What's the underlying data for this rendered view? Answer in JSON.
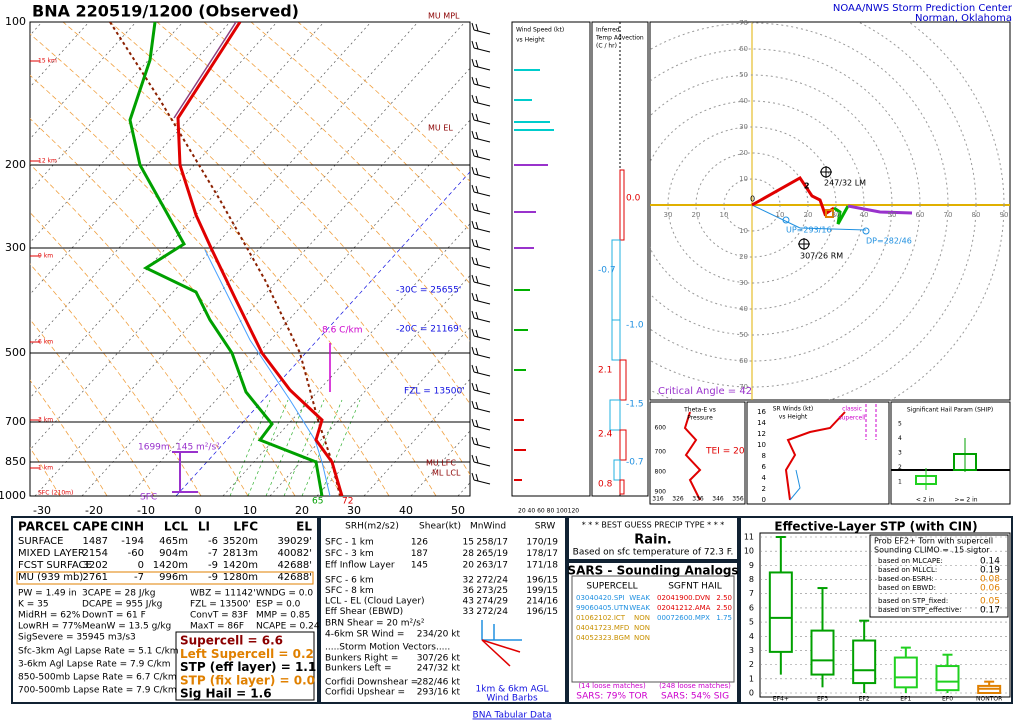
{
  "header": {
    "title": "BNA   220519/1200  (Observed)",
    "org": "NOAA/NWS Storm Prediction Center",
    "location": "Norman, Oklahoma"
  },
  "skewt": {
    "pressure_labels": [
      "100",
      "200",
      "300",
      "500",
      "700",
      "850",
      "1000"
    ],
    "temp_labels": [
      "-30",
      "-20",
      "-10",
      "0",
      "10",
      "20",
      "30",
      "40",
      "50"
    ],
    "height_labels": [
      "15 km",
      "12 km",
      "9 km",
      "6 km",
      "3 km",
      "1 km",
      "SFC (210m)"
    ],
    "annotations": {
      "mu_mpl": "MU MPL",
      "mu_el": "MU EL",
      "m30": "-30C = 25655'",
      "m20": "-20C = 21169'",
      "fzl": "FZL = 13500'",
      "lapse": "8.6 C/km",
      "eff_top": "1699m",
      "esrh": "145 m²/s²",
      "sfc": "SFC",
      "mu_lfc": "MU LFC",
      "ml_lcl": "ML LCL",
      "td": "65",
      "t": "72"
    }
  },
  "wind_panel": {
    "title": [
      "Wind Speed (kt)",
      "vs Height"
    ],
    "axis": "20 40 60 80 100120"
  },
  "advection": {
    "title": [
      "Inferred",
      "Temp Advection",
      "(C / hr)"
    ],
    "values": [
      "0.0",
      "-0.7",
      "-1.0",
      "2.1",
      "-1.5",
      "2.4",
      "-0.7",
      "0.8"
    ]
  },
  "hodograph": {
    "xticks": [
      10,
      20,
      30,
      40,
      50,
      60,
      70,
      80,
      90
    ],
    "yticks": [
      10,
      20,
      30,
      40,
      50,
      60,
      70
    ],
    "labels": {
      "lm": "247/32 LM",
      "rm": "307/26 RM",
      "up": "UP=293/16",
      "dp": "DP=282/46",
      "crit": "Critical Angle = 42",
      "p0": "0",
      "p2": "2"
    }
  },
  "theta_e": {
    "title": [
      "Theta-E vs",
      "Pressure"
    ],
    "tei": "TEI = 20",
    "yticks": [
      "600",
      "700",
      "800",
      "900"
    ],
    "xticks": [
      "316",
      "326",
      "336",
      "346",
      "356"
    ]
  },
  "sr_winds": {
    "title": [
      "SR Winds (kt)",
      "vs Height"
    ],
    "note": [
      "classic",
      "supercell"
    ],
    "yticks": [
      "16",
      "14",
      "12",
      "10",
      "8",
      "6",
      "4",
      "2",
      "0"
    ]
  },
  "ship": {
    "title": "Significant Hail Param (SHIP)",
    "yticks": [
      "5",
      "4",
      "3",
      "2",
      "1"
    ],
    "small": "< 2 in",
    "large": ">= 2 in"
  },
  "parcel": {
    "header": [
      "PARCEL",
      "CAPE",
      "CINH",
      "LCL",
      "LI",
      "LFC",
      "EL"
    ],
    "rows": [
      [
        "SURFACE",
        "1487",
        "-194",
        "465m",
        "-6",
        "3520m",
        "39029'"
      ],
      [
        "MIXED LAYER",
        "2154",
        "-60",
        "904m",
        "-7",
        "2813m",
        "40082'"
      ],
      [
        "FCST SURFACE",
        "3202",
        "0",
        "1420m",
        "-9",
        "1420m",
        "42688'"
      ],
      [
        "MU  (939 mb)",
        "2761",
        "-7",
        "996m",
        "-9",
        "1280m",
        "42688'"
      ]
    ],
    "indices": [
      [
        "PW = 1.49 in",
        "3CAPE = 28 J/kg",
        "WBZ = 11142'",
        "WNDG = 0.0"
      ],
      [
        "K = 35",
        "DCAPE = 955 J/kg",
        "FZL = 13500'",
        "ESP = 0.0"
      ],
      [
        "MidRH = 62%",
        "DownT = 61 F",
        "ConvT = 83F",
        "MMP = 0.85"
      ],
      [
        "LowRH = 77%",
        "MeanW = 13.5 g/kg",
        "MaxT = 86F",
        "NCAPE = 0.24"
      ]
    ],
    "sigsevere": "SigSevere = 35945 m3/s3",
    "lapse": [
      "Sfc-3km Agl Lapse Rate = 5.1 C/km",
      "3-6km Agl Lapse Rate = 7.9 C/km",
      "850-500mb Lapse Rate = 6.7 C/km",
      "700-500mb Lapse Rate = 7.9 C/km"
    ],
    "composite": [
      "Supercell = 6.6",
      "Left Supercell = 0.2",
      "STP (eff layer) = 1.1",
      "STP (fix layer) = 0.0",
      "Sig Hail = 1.6"
    ]
  },
  "kinematics": {
    "header": [
      "SRH(m2/s2)",
      "Shear(kt)",
      "MnWind",
      "SRW"
    ],
    "rows": [
      [
        "SFC - 1 km",
        "126",
        "15",
        "258/17",
        "170/19"
      ],
      [
        "SFC - 3 km",
        "187",
        "28",
        "265/19",
        "178/17"
      ],
      [
        "Eff Inflow Layer",
        "145",
        "20",
        "263/17",
        "171/18"
      ],
      [
        "SFC - 6 km",
        "32",
        "272/24",
        "196/15"
      ],
      [
        "SFC - 8 km",
        "36",
        "273/25",
        "199/15"
      ],
      [
        "LCL - EL (Cloud Layer)",
        "43",
        "274/29",
        "214/16"
      ],
      [
        "Eff Shear (EBWD)",
        "33",
        "272/24",
        "196/15"
      ]
    ],
    "brn": "BRN Shear = 20 m²/s²",
    "sr46": [
      "4-6km SR Wind =",
      "234/20 kt"
    ],
    "motion_title": ".....Storm Motion Vectors.....",
    "motion": [
      [
        "Bunkers Right =",
        "307/26 kt"
      ],
      [
        "Bunkers Left =",
        "247/32 kt"
      ],
      [
        "Corfidi Downshear =",
        "282/46 kt"
      ],
      [
        "Corfidi Upshear =",
        "293/16 kt"
      ]
    ],
    "barbs": [
      "1km & 6km AGL",
      "Wind Barbs"
    ]
  },
  "precip": {
    "header": "* * * BEST GUESS PRECIP TYPE * * *",
    "type": "Rain.",
    "basis": "Based on sfc temperature of 72.3 F."
  },
  "sars": {
    "title": "SARS - Sounding Analogs",
    "supercell_header": "SUPERCELL",
    "hail_header": "SGFNT HAIL",
    "supercell": [
      [
        "03040420.SPI",
        "WEAK"
      ],
      [
        "99060405.UTN",
        "WEAK"
      ],
      [
        "01062102.ICT",
        "NON"
      ],
      [
        "04041723.MFD",
        "NON"
      ],
      [
        "04052323.BGM",
        "NON"
      ]
    ],
    "hail": [
      [
        "02041900.DVN",
        "2.50"
      ],
      [
        "02041212.AMA",
        "2.50"
      ],
      [
        "00072600.MPX",
        "1.75"
      ]
    ],
    "supercell_matches": "(14 loose matches)",
    "supercell_result": "SARS: 79% TOR",
    "hail_matches": "(248 loose matches)",
    "hail_result": "SARS: 54% SIG"
  },
  "stp": {
    "title": "Effective-Layer STP (with CIN)",
    "prob": [
      "Prob EF2+ Torn with supercell",
      "Sounding CLIMO = .15 sigtor"
    ],
    "rows": [
      [
        "based on MLCAPE:",
        "0.14"
      ],
      [
        "based on MLLCL:",
        "0.19"
      ],
      [
        "based on ESRH:",
        "0.08"
      ],
      [
        "based on EBWD:",
        "0.06"
      ],
      [
        "based on STP_fixed:",
        "0.05"
      ],
      [
        "based on STP_effective:",
        "0.17"
      ]
    ],
    "chart": {
      "type": "box",
      "categories": [
        "EF4+",
        "EF3",
        "EF2",
        "EF1",
        "EF0",
        "NONTOR"
      ],
      "boxes": [
        [
          1.3,
          2.9,
          5.3,
          8.5,
          11
        ],
        [
          0.4,
          1.3,
          2.3,
          4.4,
          7.4
        ],
        [
          0,
          0.7,
          1.6,
          3.7,
          5.1
        ],
        [
          0,
          0.4,
          1.1,
          2.5,
          3.2
        ],
        [
          0,
          0.2,
          0.8,
          1.9,
          2.7
        ],
        [
          0,
          0,
          0.3,
          0.5,
          0.8
        ]
      ],
      "colors": [
        "#00a000",
        "#00a000",
        "#00a000",
        "#20d020",
        "#20d020",
        "#e08000"
      ],
      "ylim": [
        0,
        11
      ],
      "yticks": [
        0,
        1,
        2,
        3,
        4,
        5,
        6,
        7,
        8,
        9,
        10,
        11
      ]
    }
  },
  "footer": {
    "link": "BNA Tabular Data"
  }
}
